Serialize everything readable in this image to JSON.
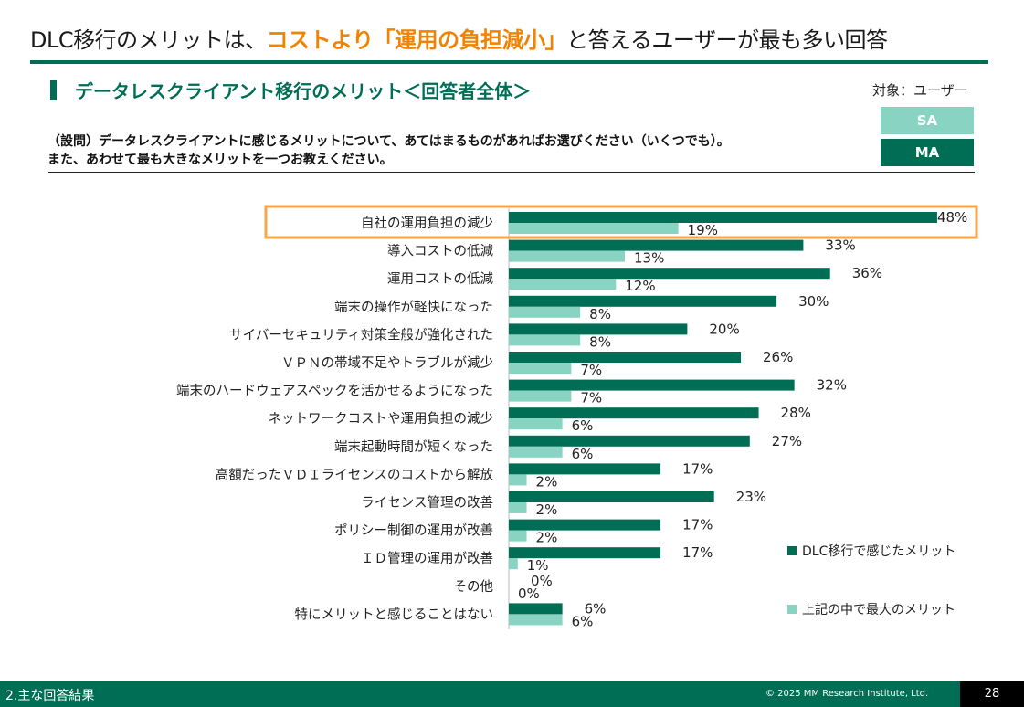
{
  "headline": {
    "prefix": "DLC移行のメリットは、",
    "highlight": "コストより「運用の負担減小」",
    "suffix": "と答えるユーザーが最も多い回答"
  },
  "subtitle": "データレスクライアント移行のメリット＜回答者全体＞",
  "target": "対象：ユーザー",
  "badges": {
    "sa": "SA",
    "ma": "MA"
  },
  "question": {
    "line1": "（設問）データレスクライアントに感じるメリットについて、あてはまるものがあればお選びください（いくつでも）。",
    "line2": "また、あわせて最も大きなメリットを一つお教えください。"
  },
  "colors": {
    "ma": "#006e54",
    "sa": "#88d3c2",
    "highlight_box": "#f6a54c",
    "accent": "#f08300"
  },
  "chart_data": {
    "type": "bar",
    "orientation": "horizontal",
    "categories": [
      "自社の運用負担の減少",
      "導入コストの低減",
      "運用コストの低減",
      "端末の操作が軽快になった",
      "サイバーセキュリティ対策全般が強化された",
      "ＶＰＮの帯域不足やトラブルが減少",
      "端末のハードウェアスペックを活かせるようになった",
      "ネットワークコストや運用負担の減少",
      "端末起動時間が短くなった",
      "高額だったＶＤＩライセンスのコストから解放",
      "ライセンス管理の改善",
      "ポリシー制御の運用が改善",
      "ＩＤ管理の運用が改善",
      "その他",
      "特にメリットと感じることはない"
    ],
    "series": [
      {
        "name": "DLC移行で感じたメリット",
        "type": "MA",
        "values": [
          48,
          33,
          36,
          30,
          20,
          26,
          32,
          28,
          27,
          17,
          23,
          17,
          17,
          0,
          6
        ]
      },
      {
        "name": "上記の中で最大のメリット",
        "type": "SA",
        "values": [
          19,
          13,
          12,
          8,
          8,
          7,
          7,
          6,
          6,
          2,
          2,
          2,
          1,
          0,
          6
        ]
      }
    ],
    "value_suffix": "%",
    "highlighted_category": "自社の運用負担の減少",
    "legend_position": "bottom-right",
    "xlim": [
      0,
      100
    ],
    "grid": false
  },
  "footer": {
    "section": "2.主な回答結果",
    "copyright": "© 2025 MM Research Institute, Ltd.",
    "page": "28"
  }
}
